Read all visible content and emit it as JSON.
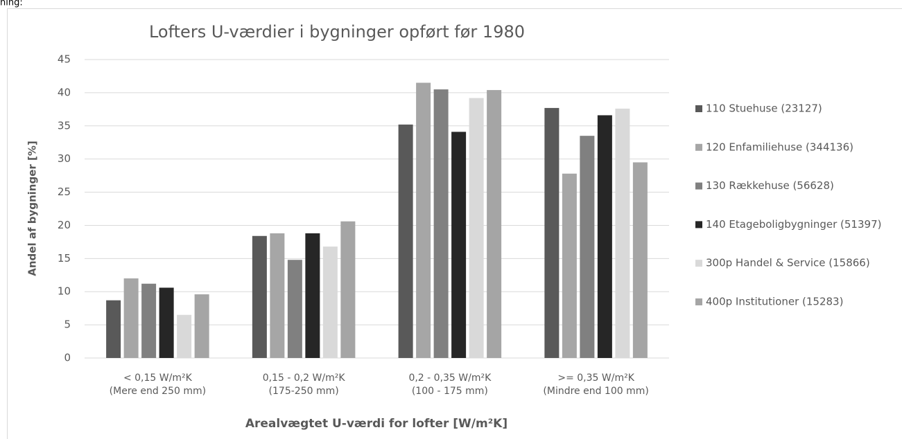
{
  "preceding_text": "ning:",
  "chart_data": {
    "type": "bar",
    "title": "Lofters U-værdier i bygninger opført før 1980",
    "y_label": "Andel af bygninger [%]",
    "x_label": "Arealvægtet U-værdi for lofter [W/m²K]",
    "categories": [
      [
        "< 0,15 W/m²K",
        "(Mere end 250 mm)"
      ],
      [
        "0,15 - 0,2 W/m²K",
        "(175-250 mm)"
      ],
      [
        "0,2 - 0,35 W/m²K",
        "(100 - 175 mm)"
      ],
      [
        ">= 0,35 W/m²K",
        "(Mindre end 100 mm)"
      ]
    ],
    "series": [
      {
        "name": "110 Stuehuse (23127)",
        "color": "#595959",
        "values": [
          8.7,
          18.4,
          35.2,
          37.7
        ]
      },
      {
        "name": "120 Enfamiliehuse (344136)",
        "color": "#a6a6a6",
        "values": [
          12.0,
          18.8,
          41.5,
          27.8
        ]
      },
      {
        "name": "130 Rækkehuse (56628)",
        "color": "#808080",
        "values": [
          11.2,
          14.8,
          40.5,
          33.5
        ]
      },
      {
        "name": "140 Etageboligbygninger (51397)",
        "color": "#262626",
        "values": [
          10.6,
          18.8,
          34.1,
          36.6
        ]
      },
      {
        "name": "300p Handel & Service (15866)",
        "color": "#d9d9d9",
        "values": [
          6.5,
          16.8,
          39.2,
          37.6
        ]
      },
      {
        "name": "400p Institutioner (15283)",
        "color": "#a5a5a5",
        "values": [
          9.6,
          20.6,
          40.4,
          29.5
        ]
      }
    ],
    "ylim": [
      0,
      45
    ],
    "yticks": [
      0,
      5,
      10,
      15,
      20,
      25,
      30,
      35,
      40,
      45
    ],
    "grid": true,
    "legend": "right"
  }
}
